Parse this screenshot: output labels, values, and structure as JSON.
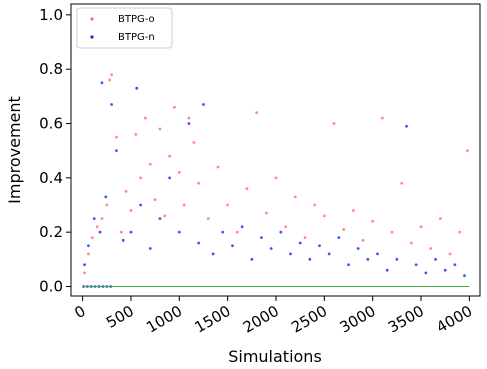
{
  "chart_data": {
    "type": "scatter",
    "xlabel": "Simulations",
    "ylabel": "Improvement",
    "xlim": [
      -120,
      4110
    ],
    "ylim": [
      -0.035,
      1.04
    ],
    "x_ticks": [
      "0",
      "500",
      "1000",
      "1500",
      "2000",
      "2500",
      "3000",
      "3500",
      "4000"
    ],
    "x_tick_values": [
      0,
      500,
      1000,
      1500,
      2000,
      2500,
      3000,
      3500,
      4000
    ],
    "y_ticks": [
      "0.0",
      "0.2",
      "0.4",
      "0.6",
      "0.8",
      "1.0"
    ],
    "y_tick_values": [
      0.0,
      0.2,
      0.4,
      0.6,
      0.8,
      1.0
    ],
    "grid": false,
    "legend_position": "top-left",
    "baseline": {
      "y": 0.0,
      "color": "#3cb043"
    },
    "series": [
      {
        "name": "BTPG-o",
        "color": "#ff6b6b",
        "points": [
          [
            20,
            0.05
          ],
          [
            60,
            0.12
          ],
          [
            100,
            0.18
          ],
          [
            150,
            0.22
          ],
          [
            200,
            0.25
          ],
          [
            250,
            0.3
          ],
          [
            280,
            0.76
          ],
          [
            300,
            0.78
          ],
          [
            350,
            0.55
          ],
          [
            400,
            0.2
          ],
          [
            450,
            0.35
          ],
          [
            500,
            0.28
          ],
          [
            550,
            0.56
          ],
          [
            600,
            0.4
          ],
          [
            650,
            0.62
          ],
          [
            700,
            0.45
          ],
          [
            750,
            0.32
          ],
          [
            800,
            0.58
          ],
          [
            850,
            0.26
          ],
          [
            900,
            0.48
          ],
          [
            950,
            0.66
          ],
          [
            1000,
            0.42
          ],
          [
            1050,
            0.3
          ],
          [
            1100,
            0.62
          ],
          [
            1150,
            0.53
          ],
          [
            1200,
            0.38
          ],
          [
            1300,
            0.25
          ],
          [
            1400,
            0.44
          ],
          [
            1500,
            0.3
          ],
          [
            1600,
            0.2
          ],
          [
            1700,
            0.36
          ],
          [
            1800,
            0.64
          ],
          [
            1900,
            0.27
          ],
          [
            2000,
            0.4
          ],
          [
            2100,
            0.22
          ],
          [
            2200,
            0.33
          ],
          [
            2300,
            0.18
          ],
          [
            2400,
            0.3
          ],
          [
            2500,
            0.26
          ],
          [
            2600,
            0.6
          ],
          [
            2700,
            0.21
          ],
          [
            2800,
            0.28
          ],
          [
            2900,
            0.17
          ],
          [
            3000,
            0.24
          ],
          [
            3100,
            0.62
          ],
          [
            3200,
            0.2
          ],
          [
            3300,
            0.38
          ],
          [
            3400,
            0.16
          ],
          [
            3500,
            0.22
          ],
          [
            3600,
            0.14
          ],
          [
            3700,
            0.25
          ],
          [
            3800,
            0.12
          ],
          [
            3900,
            0.2
          ],
          [
            3980,
            0.5
          ]
        ]
      },
      {
        "name": "BTPG-n",
        "color": "#2222ee",
        "points": [
          [
            10,
            0.0
          ],
          [
            50,
            0.0
          ],
          [
            90,
            0.0
          ],
          [
            130,
            0.0
          ],
          [
            170,
            0.0
          ],
          [
            210,
            0.0
          ],
          [
            250,
            0.0
          ],
          [
            290,
            0.0
          ],
          [
            20,
            0.08
          ],
          [
            60,
            0.15
          ],
          [
            120,
            0.25
          ],
          [
            180,
            0.2
          ],
          [
            200,
            0.75
          ],
          [
            240,
            0.33
          ],
          [
            300,
            0.67
          ],
          [
            350,
            0.5
          ],
          [
            420,
            0.17
          ],
          [
            500,
            0.2
          ],
          [
            560,
            0.73
          ],
          [
            600,
            0.3
          ],
          [
            700,
            0.14
          ],
          [
            800,
            0.25
          ],
          [
            900,
            0.4
          ],
          [
            1000,
            0.2
          ],
          [
            1100,
            0.6
          ],
          [
            1200,
            0.16
          ],
          [
            1250,
            0.67
          ],
          [
            1350,
            0.12
          ],
          [
            1450,
            0.2
          ],
          [
            1550,
            0.15
          ],
          [
            1650,
            0.22
          ],
          [
            1750,
            0.1
          ],
          [
            1850,
            0.18
          ],
          [
            1950,
            0.14
          ],
          [
            2050,
            0.2
          ],
          [
            2150,
            0.12
          ],
          [
            2250,
            0.16
          ],
          [
            2350,
            0.1
          ],
          [
            2450,
            0.15
          ],
          [
            2550,
            0.12
          ],
          [
            2650,
            0.18
          ],
          [
            2750,
            0.08
          ],
          [
            2850,
            0.14
          ],
          [
            2950,
            0.1
          ],
          [
            3050,
            0.12
          ],
          [
            3150,
            0.06
          ],
          [
            3250,
            0.1
          ],
          [
            3350,
            0.59
          ],
          [
            3450,
            0.08
          ],
          [
            3550,
            0.05
          ],
          [
            3650,
            0.1
          ],
          [
            3750,
            0.06
          ],
          [
            3850,
            0.08
          ],
          [
            3950,
            0.04
          ]
        ]
      }
    ]
  }
}
